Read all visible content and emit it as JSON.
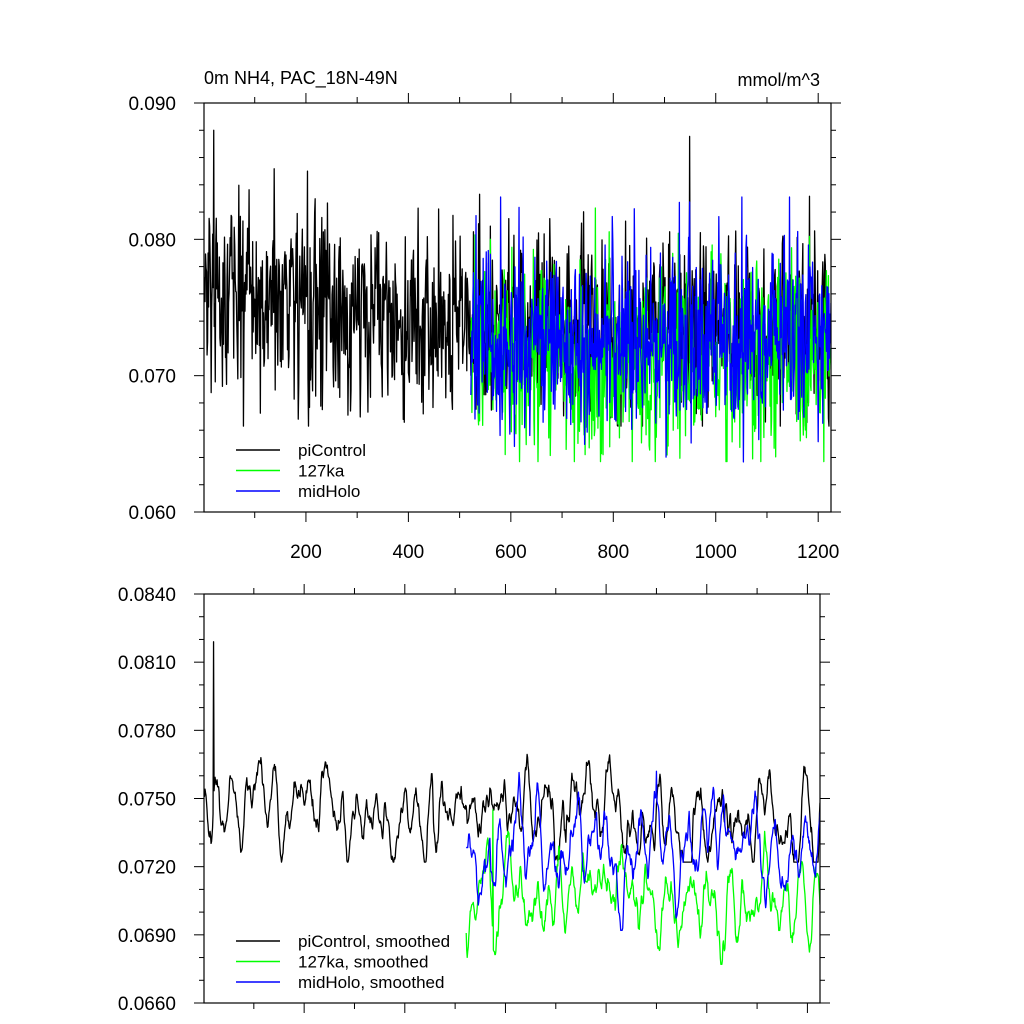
{
  "figure": {
    "top_left_title": "0m NH4, PAC_18N-49N",
    "top_right_unit": "mmol/m^3"
  },
  "chart_data": [
    {
      "type": "line",
      "panel": "top",
      "xlim": [
        1,
        1225
      ],
      "ylim": [
        0.06,
        0.09
      ],
      "x_ticks": [
        200,
        400,
        600,
        800,
        1000,
        1200
      ],
      "x_tick_labels": [
        "200",
        "400",
        "600",
        "800",
        "1000",
        "1200"
      ],
      "y_ticks": [
        0.06,
        0.07,
        0.08,
        0.09
      ],
      "y_tick_labels": [
        "0.060",
        "0.070",
        "0.080",
        "0.090"
      ],
      "grid": false,
      "legend_position": "bottom-left",
      "series": [
        {
          "name": "piControl",
          "color": "#000000",
          "x_start": 1,
          "x_end": 1225,
          "mean": 0.0755,
          "mean_end": 0.0735,
          "std": 0.0034,
          "min": 0.0663,
          "max": 0.088,
          "peak_x": 20,
          "peak_value": 0.088
        },
        {
          "name": "127ka",
          "color": "#00ff00",
          "x_start": 522,
          "x_end": 1225,
          "mean": 0.0712,
          "std": 0.0036,
          "min": 0.0637,
          "max": 0.0823,
          "peak_x": 765,
          "peak_value": 0.0823
        },
        {
          "name": "midHolo",
          "color": "#0000ff",
          "x_start": 522,
          "x_end": 1225,
          "mean": 0.0727,
          "std": 0.0034,
          "min": 0.0635,
          "max": 0.0831,
          "peak_x": 580,
          "peak_value": 0.0831
        }
      ]
    },
    {
      "type": "line",
      "panel": "bottom",
      "xlim": [
        1,
        1225
      ],
      "ylim": [
        0.066,
        0.084
      ],
      "x_ticks": [
        200,
        400,
        600,
        800,
        1000,
        1200
      ],
      "y_ticks": [
        0.066,
        0.069,
        0.072,
        0.075,
        0.078,
        0.081,
        0.084
      ],
      "y_tick_labels": [
        "0.0660",
        "0.0690",
        "0.0720",
        "0.0750",
        "0.0780",
        "0.0810",
        "0.0840"
      ],
      "grid": false,
      "legend_position": "bottom-left",
      "series": [
        {
          "name": "piControl, smoothed",
          "color": "#000000",
          "x_start": 1,
          "x_end": 1225,
          "mean": 0.0752,
          "mean_end": 0.0738,
          "std": 0.0011,
          "min": 0.0722,
          "max": 0.0819,
          "peak_x": 20,
          "peak_value": 0.0819
        },
        {
          "name": "127ka, smoothed",
          "color": "#00ff00",
          "x_start": 522,
          "x_end": 1225,
          "mean": 0.0706,
          "std": 0.0011,
          "min": 0.0677,
          "max": 0.0745,
          "peak_x": 575,
          "peak_value": 0.0745
        },
        {
          "name": "midHolo, smoothed",
          "color": "#0000ff",
          "x_start": 522,
          "x_end": 1225,
          "mean": 0.0728,
          "std": 0.0012,
          "min": 0.0692,
          "max": 0.0762,
          "peak_x": 900,
          "peak_value": 0.0762
        }
      ]
    }
  ]
}
